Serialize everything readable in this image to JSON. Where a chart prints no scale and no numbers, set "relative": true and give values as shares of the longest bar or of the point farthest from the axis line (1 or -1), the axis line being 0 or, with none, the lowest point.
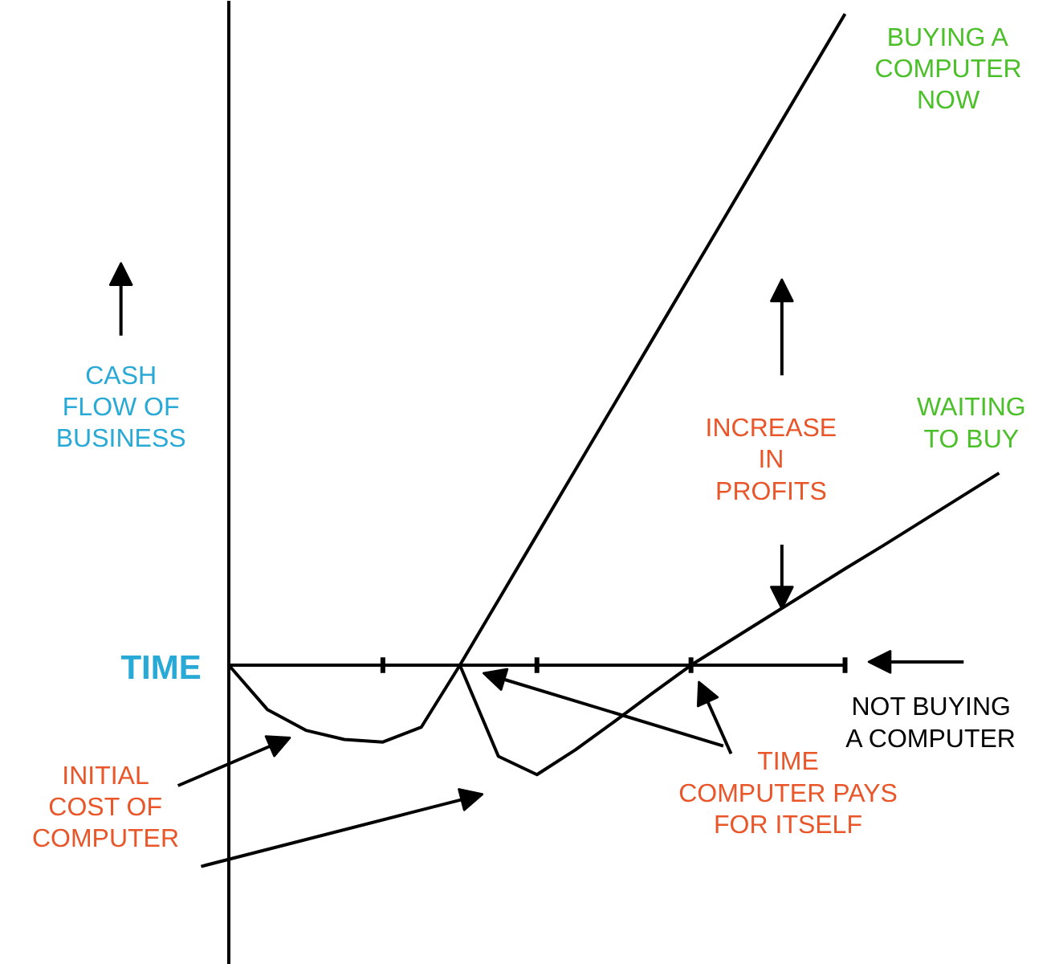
{
  "chart_data": {
    "type": "line",
    "relative": true,
    "xlabel": "TIME",
    "ylabel": "CASH\nFLOW OF\nBUSINESS",
    "categories": [
      null,
      null,
      null,
      null,
      null,
      null,
      null,
      null,
      null,
      null,
      null,
      null,
      null,
      null,
      null,
      null,
      null,
      null,
      null,
      null,
      null
    ],
    "legend": false,
    "grid": false,
    "marker": "none",
    "line_style": "solid",
    "series": [
      {
        "name": "BUYING A\nCOMPUTER\nNOW",
        "color": "#000000",
        "values": [
          0,
          -0.068,
          -0.1,
          -0.114,
          -0.118,
          -0.095,
          0,
          0.1,
          0.2,
          0.3,
          0.4,
          0.5,
          0.6,
          0.7,
          0.8,
          0.9,
          1.0,
          null,
          null,
          null,
          null
        ]
      },
      {
        "name": "WAITING\nTO BUY",
        "color": "#000000",
        "values": [
          null,
          null,
          null,
          null,
          null,
          null,
          0,
          -0.14,
          -0.168,
          -0.13,
          -0.087,
          -0.043,
          0,
          0.037,
          0.074,
          0.111,
          0.148,
          0.184,
          0.221,
          0.258,
          0.295
        ]
      }
    ],
    "annotations": [
      "INITIAL\nCOST OF\nCOMPUTER",
      "INCREASE\nIN\nPROFITS",
      "TIME\nCOMPUTER PAYS\nFOR ITSELF",
      "NOT BUYING\nA COMPUTER"
    ]
  }
}
